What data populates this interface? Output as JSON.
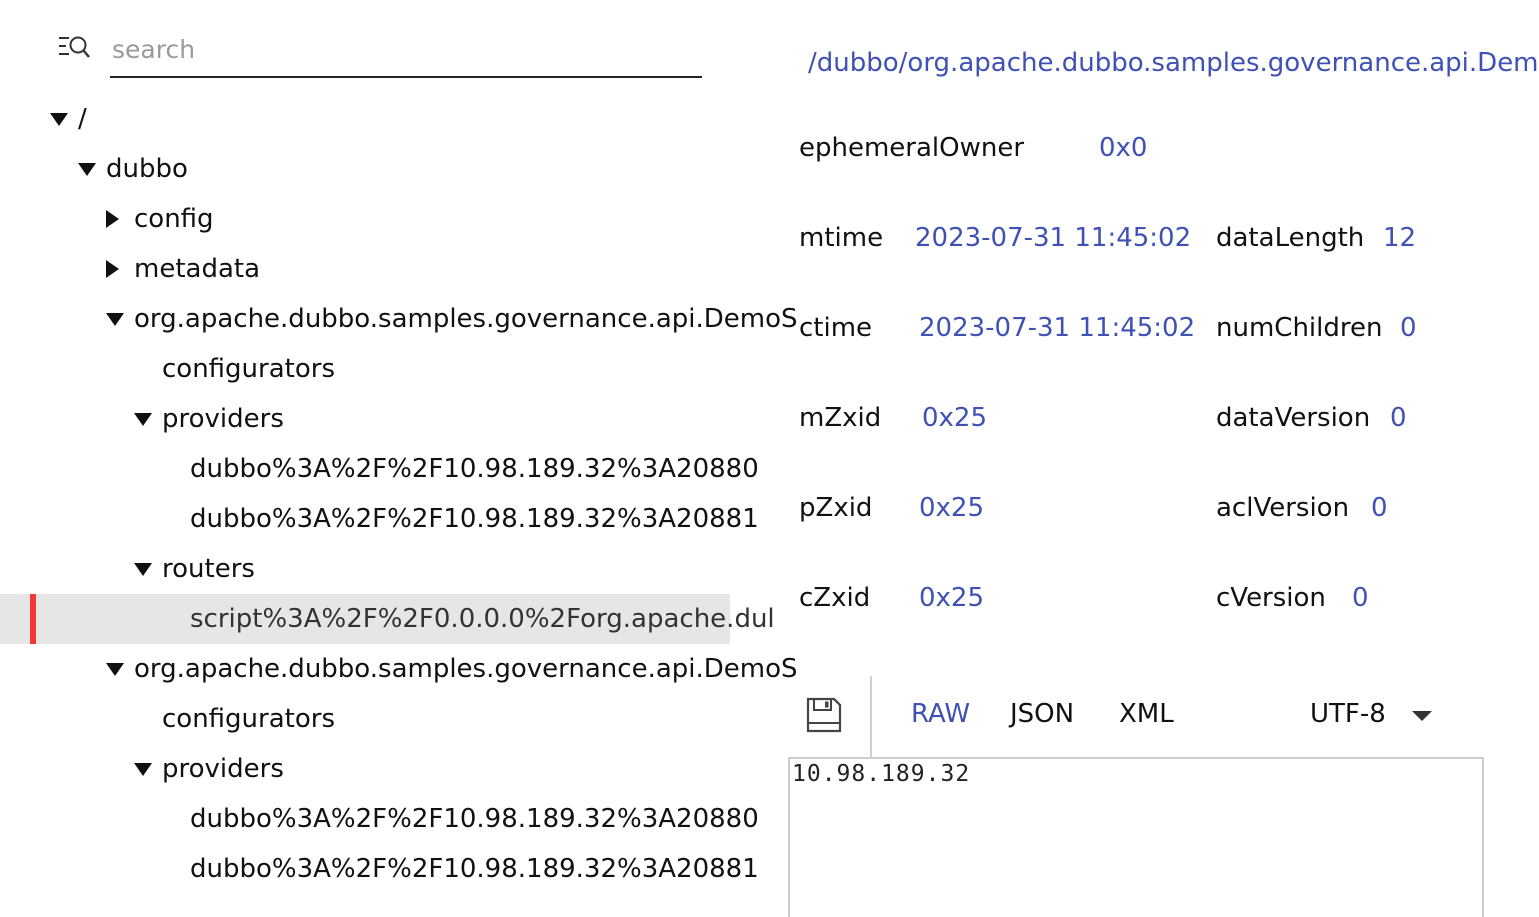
{
  "search": {
    "placeholder": "search"
  },
  "tree": [
    {
      "label": "/",
      "state": "expanded",
      "depth": 0
    },
    {
      "label": "dubbo",
      "state": "expanded",
      "depth": 1
    },
    {
      "label": "config",
      "state": "collapsed",
      "depth": 2
    },
    {
      "label": "metadata",
      "state": "collapsed",
      "depth": 2
    },
    {
      "label": "org.apache.dubbo.samples.governance.api.DemoS",
      "state": "expanded",
      "depth": 2
    },
    {
      "label": "configurators",
      "state": "leaf",
      "depth": 3
    },
    {
      "label": "providers",
      "state": "expanded",
      "depth": 3
    },
    {
      "label": "dubbo%3A%2F%2F10.98.189.32%3A20880",
      "state": "leaf",
      "depth": 4
    },
    {
      "label": "dubbo%3A%2F%2F10.98.189.32%3A20881",
      "state": "leaf",
      "depth": 4
    },
    {
      "label": "routers",
      "state": "expanded",
      "depth": 3
    },
    {
      "label": "script%3A%2F%2F0.0.0.0%2Forg.apache.dul",
      "state": "leaf",
      "depth": 4,
      "selected": true
    },
    {
      "label": "org.apache.dubbo.samples.governance.api.DemoS",
      "state": "expanded",
      "depth": 2
    },
    {
      "label": "configurators",
      "state": "leaf",
      "depth": 3
    },
    {
      "label": "providers",
      "state": "expanded",
      "depth": 3
    },
    {
      "label": "dubbo%3A%2F%2F10.98.189.32%3A20880",
      "state": "leaf",
      "depth": 4
    },
    {
      "label": "dubbo%3A%2F%2F10.98.189.32%3A20881",
      "state": "leaf",
      "depth": 4
    }
  ],
  "detail": {
    "path": "/dubbo/org.apache.dubbo.samples.governance.api.Dem",
    "stats": {
      "ephemeralOwner": {
        "key": "ephemeralOwner",
        "value": "0x0"
      },
      "mtime": {
        "key": "mtime",
        "value": "2023-07-31 11:45:02"
      },
      "dataLength": {
        "key": "dataLength",
        "value": "12"
      },
      "ctime": {
        "key": "ctime",
        "value": "2023-07-31 11:45:02"
      },
      "numChildren": {
        "key": "numChildren",
        "value": "0"
      },
      "mZxid": {
        "key": "mZxid",
        "value": "0x25"
      },
      "dataVersion": {
        "key": "dataVersion",
        "value": "0"
      },
      "pZxid": {
        "key": "pZxid",
        "value": "0x25"
      },
      "aclVersion": {
        "key": "aclVersion",
        "value": "0"
      },
      "cZxid": {
        "key": "cZxid",
        "value": "0x25"
      },
      "cVersion": {
        "key": "cVersion",
        "value": "0"
      }
    },
    "formats": {
      "raw": "RAW",
      "json": "JSON",
      "xml": "XML",
      "active": "RAW"
    },
    "encoding": "UTF-8",
    "content": "10.98.189.32"
  },
  "colors": {
    "accent": "#3f51b5",
    "selection_marker": "#f03a3a",
    "selection_bg": "#e6e6e6"
  }
}
